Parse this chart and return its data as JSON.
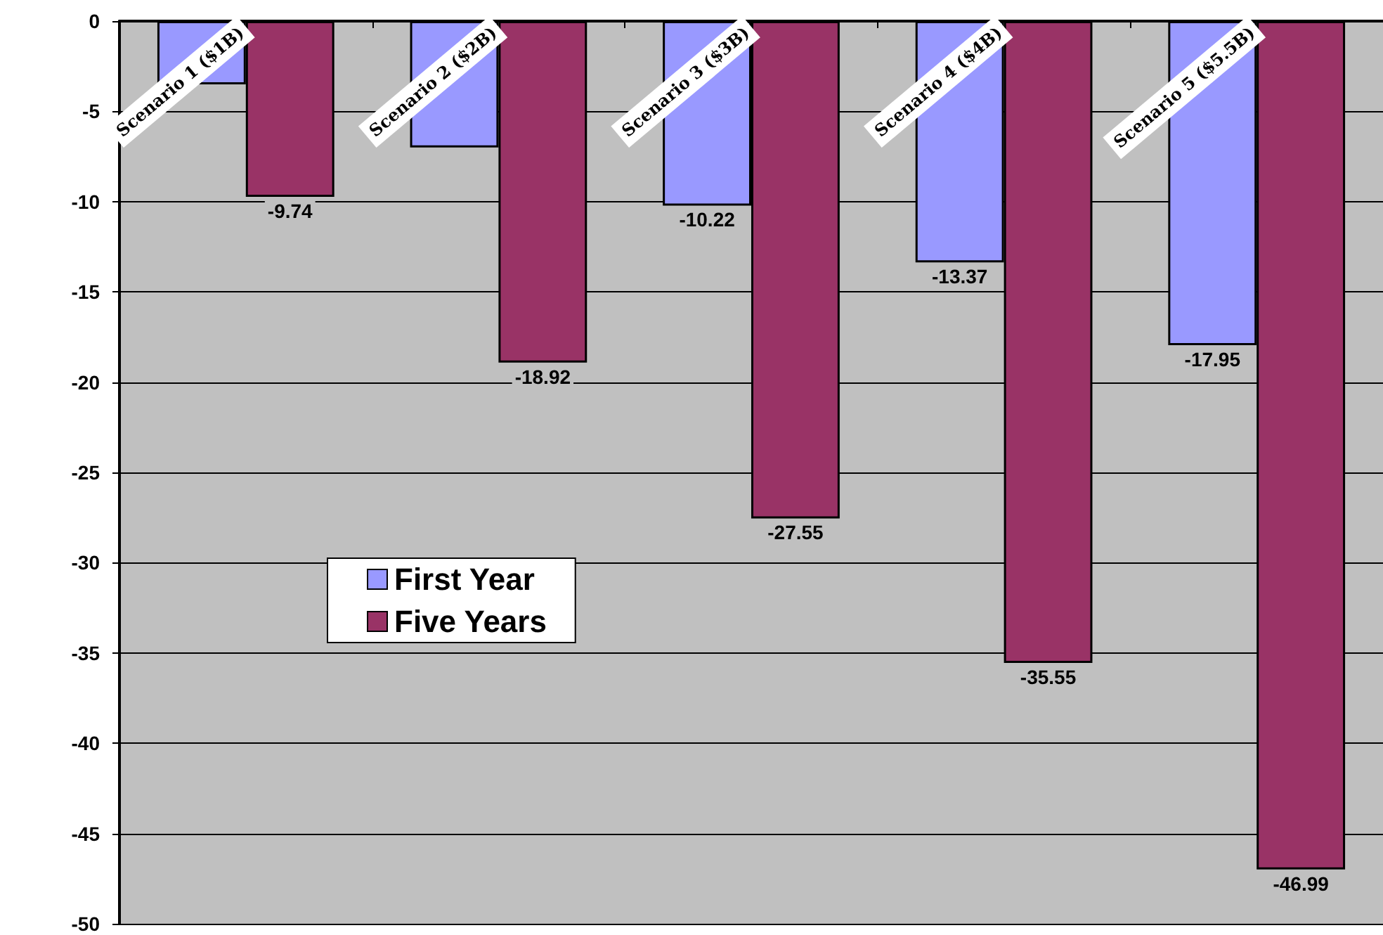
{
  "chart_data": {
    "type": "bar",
    "categories": [
      "Scenario 1 ($1B)",
      "Scenario 2 ($2B)",
      "Scenario 3 ($3B)",
      "Scenario 4 ($4B)",
      "Scenario 5 ($5.5B)"
    ],
    "series": [
      {
        "name": "First Year",
        "color": "#9999ff",
        "values": [
          -3.5,
          -7.0,
          -10.22,
          -13.37,
          -17.95
        ],
        "value_labels": [
          null,
          null,
          "-10.22",
          "-13.37",
          "-17.95"
        ]
      },
      {
        "name": "Five Years",
        "color": "#993366",
        "values": [
          -9.74,
          -18.92,
          -27.55,
          -35.55,
          -46.99
        ],
        "value_labels": [
          "-9.74",
          "-18.92",
          "-27.55",
          "-35.55",
          "-46.99"
        ]
      }
    ],
    "ylim": [
      -50,
      0
    ],
    "yticks": [
      -50,
      -45,
      -40,
      -35,
      -30,
      -25,
      -20,
      -15,
      -10,
      -5,
      0
    ],
    "grid": "y",
    "legend": "left"
  }
}
